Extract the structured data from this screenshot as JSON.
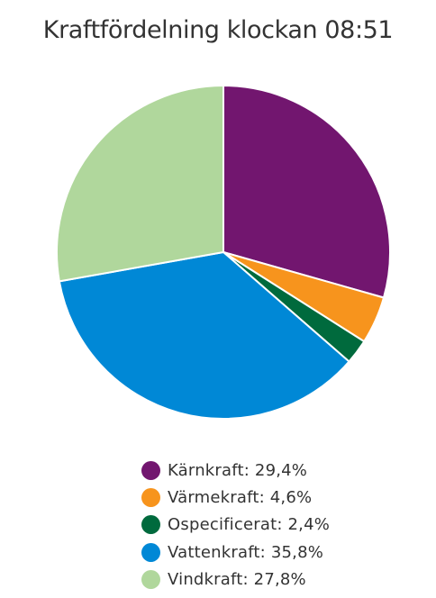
{
  "chart_data": {
    "type": "pie",
    "title": "Kraftfördelning klockan 08:51",
    "slices": [
      {
        "label": "Kärnkraft",
        "value": 29.4,
        "display": "29,4%",
        "color": "#72166f"
      },
      {
        "label": "Värmekraft",
        "value": 4.6,
        "display": "4,6%",
        "color": "#f7941d"
      },
      {
        "label": "Ospecificerat",
        "value": 2.4,
        "display": "2,4%",
        "color": "#006a3d"
      },
      {
        "label": "Vattenkraft",
        "value": 35.8,
        "display": "35,8%",
        "color": "#0088d6"
      },
      {
        "label": "Vindkraft",
        "value": 27.8,
        "display": "27,8%",
        "color": "#b0d79c"
      }
    ],
    "legend_position": "bottom"
  }
}
